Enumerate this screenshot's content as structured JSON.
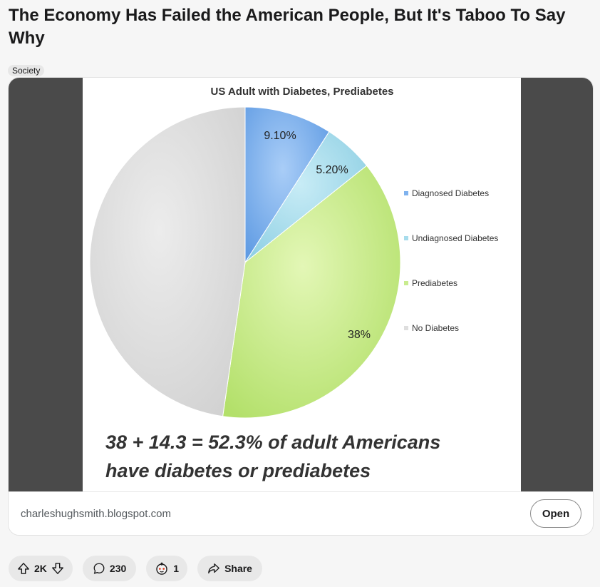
{
  "post": {
    "title": "The Economy Has Failed the American People, But It's Taboo To Say Why",
    "flair": "Society"
  },
  "image": {
    "chart_title": "US Adult with Diabetes, Prediabetes",
    "caption_line1": "38 + 14.3 = 52.3% of adult Americans",
    "caption_line2": "have diabetes or prediabetes"
  },
  "chart_data": {
    "type": "pie",
    "title": "US Adult with Diabetes, Prediabetes",
    "slices": [
      {
        "name": "Diagnosed Diabetes",
        "value": 9.1,
        "label": "9.10%",
        "color": "#7fb2ee"
      },
      {
        "name": "Undiagnosed Diabetes",
        "value": 5.2,
        "label": "5.20%",
        "color": "#a7dcec"
      },
      {
        "name": "Prediabetes",
        "value": 38,
        "label": "38%",
        "color": "#c9ec8f"
      },
      {
        "name": "No Diabetes",
        "value": 47.7,
        "label": "",
        "color": "#dedede"
      }
    ],
    "legend_position": "right"
  },
  "link": {
    "domain": "charleshughsmith.blogspot.com",
    "open_label": "Open"
  },
  "actions": {
    "votes": "2K",
    "comments": "230",
    "awards": "1",
    "share_label": "Share"
  }
}
